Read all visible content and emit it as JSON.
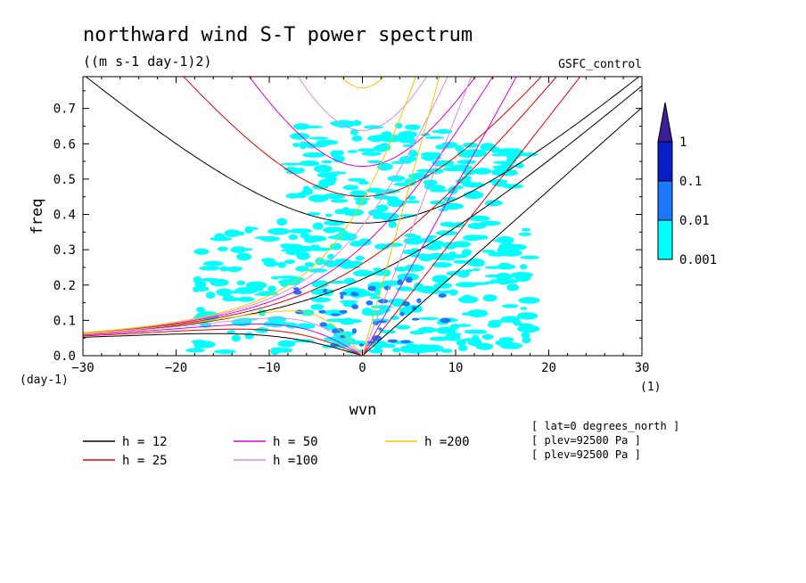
{
  "chart_data": {
    "type": "heatmap",
    "title": "northward wind S-T power spectrum",
    "subtitle": "((m s-1 day-1)2)",
    "dataset_label": "GSFC_control",
    "xlabel": "wvn",
    "ylabel": "freq",
    "x_unit": "(1)",
    "y_unit": "(day-1)",
    "xlim": [
      -30,
      30
    ],
    "ylim": [
      0,
      0.79
    ],
    "x_ticks": [
      -30,
      -20,
      -10,
      0,
      10,
      20,
      30
    ],
    "x_tick_labels": [
      "−30",
      "−20",
      "−10",
      "0",
      "10",
      "20",
      "30"
    ],
    "y_ticks": [
      0,
      0.1,
      0.2,
      0.3,
      0.4,
      0.5,
      0.6,
      0.7
    ],
    "y_tick_labels": [
      "0.0",
      "0.1",
      "0.2",
      "0.3",
      "0.4",
      "0.5",
      "0.6",
      "0.7"
    ],
    "colorbar": {
      "levels": [
        "0.001",
        "0.01",
        "0.1",
        "1"
      ],
      "colors": [
        "#00ffff",
        "#1e78ff",
        "#0a1ec8",
        "#3c1e96"
      ]
    },
    "dispersion_curves": [
      {
        "label": "h = 12",
        "h": 12,
        "color": "#000000"
      },
      {
        "label": "h = 25",
        "h": 25,
        "color": "#e60000"
      },
      {
        "label": "h = 50",
        "h": 50,
        "color": "#dc00dc"
      },
      {
        "label": "h =100",
        "h": 100,
        "color": "#dc8cdc"
      },
      {
        "label": "h =200",
        "h": 200,
        "color": "#f0c800"
      }
    ],
    "info_lines": [
      "[ lat=0 degrees_north ]",
      "[ plev=92500 Pa ]",
      "[ plev=92500 Pa ]"
    ]
  }
}
